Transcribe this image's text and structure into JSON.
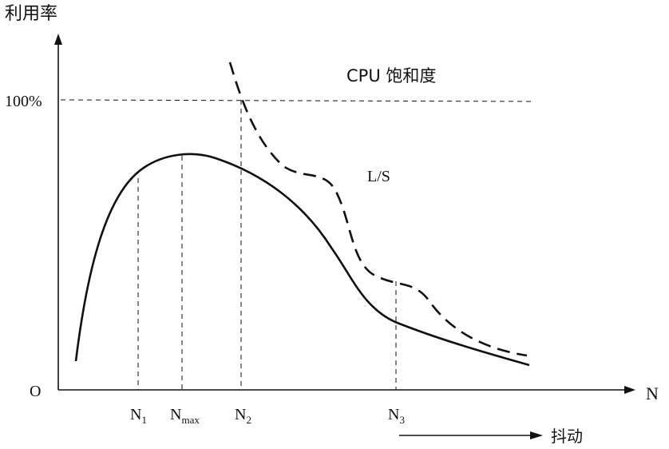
{
  "axes": {
    "y_label": "利用率",
    "x_label": "N",
    "origin_label": "O",
    "y_mark_100": "100%"
  },
  "labels": {
    "cpu_saturation": "CPU 饱和度",
    "ls": "L/S",
    "thrash_label": "抖动"
  },
  "ticks": {
    "n1": {
      "main": "N",
      "sub": "1"
    },
    "nmax": {
      "main": "N",
      "sub": "max"
    },
    "n2": {
      "main": "N",
      "sub": "2"
    },
    "n3": {
      "main": "N",
      "sub": "3"
    }
  }
}
